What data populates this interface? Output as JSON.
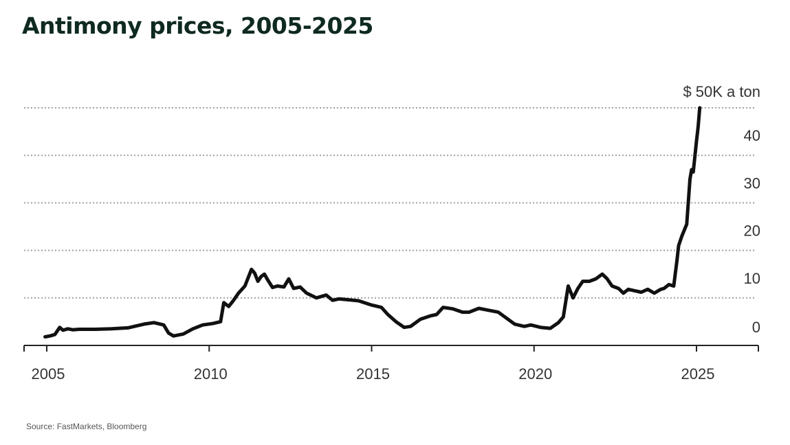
{
  "title": "Antimony prices, 2005-2025",
  "source": "Source: FastMarkets, Bloomberg",
  "colors": {
    "line": "#111111",
    "grid": "#a0a0a0",
    "axis": "#222222",
    "title": "#0f2a20"
  },
  "chart_data": {
    "type": "line",
    "title": "Antimony prices, 2005-2025",
    "xlabel": "",
    "ylabel": "",
    "unit_label": "$ 50K a ton",
    "xlim": [
      2004.8,
      2026.8
    ],
    "ylim": [
      0,
      50
    ],
    "x_ticks": [
      2005,
      2010,
      2015,
      2020,
      2025
    ],
    "x_tick_labels": [
      "2005",
      "2010",
      "2015",
      "2020",
      "2025"
    ],
    "y_ticks": [
      0,
      10,
      20,
      30,
      40,
      50
    ],
    "y_tick_labels": [
      "0",
      "10",
      "20",
      "30",
      "40",
      ""
    ],
    "grid": "horizontal dotted",
    "series": [
      {
        "name": "",
        "x": [
          2004.95,
          2005.1,
          2005.25,
          2005.4,
          2005.5,
          2005.65,
          2005.8,
          2006.0,
          2006.5,
          2007.0,
          2007.5,
          2008.0,
          2008.3,
          2008.6,
          2008.75,
          2008.9,
          2009.2,
          2009.5,
          2009.8,
          2010.1,
          2010.35,
          2010.45,
          2010.6,
          2010.75,
          2010.9,
          2011.1,
          2011.3,
          2011.4,
          2011.5,
          2011.6,
          2011.7,
          2011.8,
          2011.95,
          2012.1,
          2012.3,
          2012.45,
          2012.6,
          2012.8,
          2013.0,
          2013.3,
          2013.6,
          2013.8,
          2014.0,
          2014.3,
          2014.6,
          2015.0,
          2015.3,
          2015.5,
          2015.75,
          2016.0,
          2016.2,
          2016.5,
          2016.8,
          2017.0,
          2017.2,
          2017.5,
          2017.8,
          2018.0,
          2018.3,
          2018.6,
          2018.9,
          2019.1,
          2019.4,
          2019.7,
          2019.9,
          2020.2,
          2020.5,
          2020.75,
          2020.9,
          2021.05,
          2021.2,
          2021.35,
          2021.5,
          2021.7,
          2021.9,
          2022.1,
          2022.25,
          2022.4,
          2022.6,
          2022.75,
          2022.9,
          2023.1,
          2023.3,
          2023.5,
          2023.7,
          2023.9,
          2024.0,
          2024.15,
          2024.3,
          2024.4,
          2024.45,
          2024.55,
          2024.7,
          2024.8,
          2024.85,
          2024.9,
          2025.0,
          2025.05,
          2025.1
        ],
        "values": [
          1.8,
          2.0,
          2.3,
          3.8,
          3.2,
          3.5,
          3.3,
          3.4,
          3.4,
          3.5,
          3.7,
          4.5,
          4.8,
          4.3,
          2.6,
          2.0,
          2.4,
          3.5,
          4.3,
          4.6,
          5.0,
          9.0,
          8.2,
          9.5,
          11.0,
          12.5,
          16.0,
          15.2,
          13.5,
          14.5,
          15.0,
          13.8,
          12.2,
          12.5,
          12.3,
          14.0,
          12.0,
          12.3,
          11.0,
          10.0,
          10.6,
          9.5,
          9.8,
          9.6,
          9.4,
          8.5,
          8.0,
          6.5,
          5.0,
          3.8,
          4.0,
          5.5,
          6.2,
          6.5,
          8.0,
          7.7,
          7.0,
          7.0,
          7.8,
          7.4,
          7.0,
          6.0,
          4.5,
          4.0,
          4.3,
          3.8,
          3.6,
          4.8,
          6.0,
          12.5,
          10.0,
          12.0,
          13.5,
          13.5,
          14.0,
          15.0,
          14.0,
          12.5,
          12.0,
          11.0,
          11.8,
          11.5,
          11.2,
          11.8,
          11.0,
          11.8,
          12.0,
          12.8,
          12.5,
          18.0,
          21.0,
          23.0,
          25.5,
          35.0,
          37.0,
          36.5,
          43.0,
          46.0,
          50.0
        ]
      }
    ]
  }
}
